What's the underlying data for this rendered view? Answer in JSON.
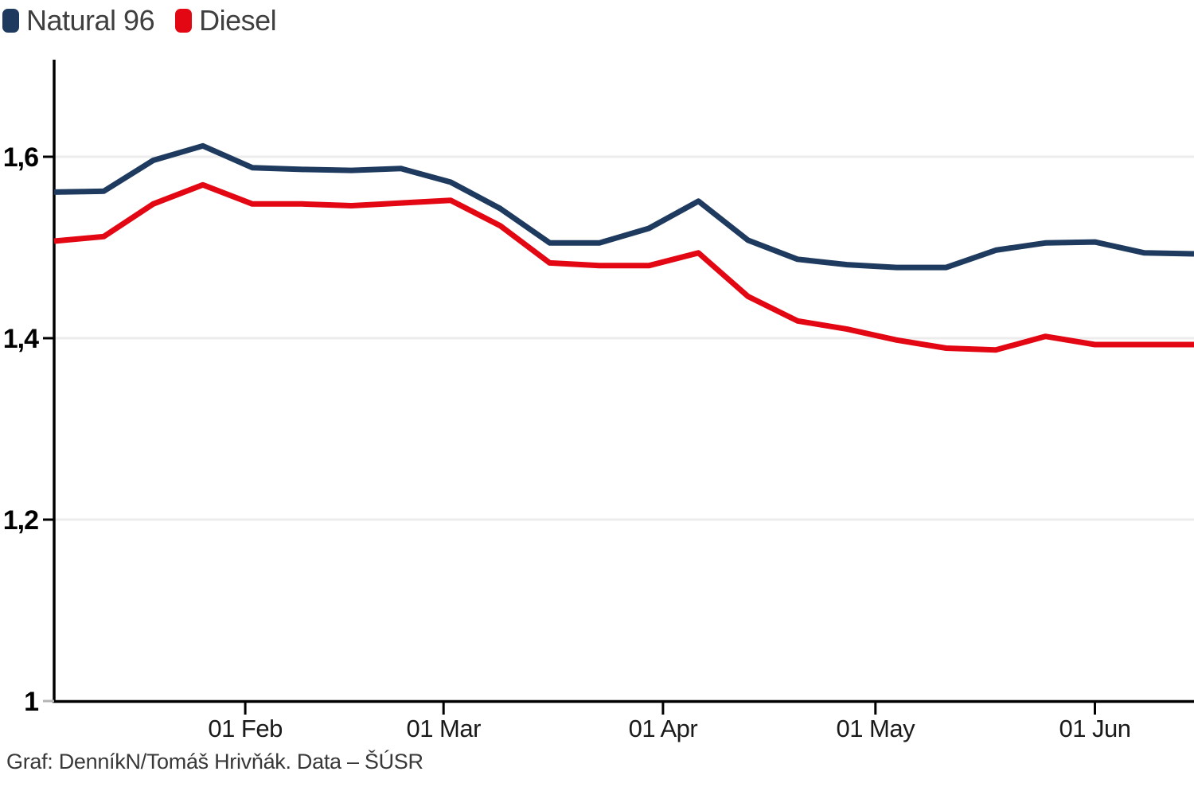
{
  "legend": {
    "items": [
      {
        "label": "Natural 96",
        "color": "#1e3a5f"
      },
      {
        "label": "Diesel",
        "color": "#e30613"
      }
    ]
  },
  "footer": {
    "credit": "Graf: DenníkN/Tomáš Hrivňák. Data – ŠÚSR"
  },
  "chart_data": {
    "type": "line",
    "title": "",
    "xlabel": "",
    "ylabel": "",
    "x_unit": "day_of_year_weekly",
    "x": [
      5,
      12,
      19,
      26,
      33,
      40,
      47,
      54,
      61,
      68,
      75,
      82,
      89,
      96,
      103,
      110,
      117,
      124,
      131,
      138,
      145,
      152,
      159,
      166
    ],
    "x_domain": [
      5,
      166
    ],
    "y_domain": [
      1.0,
      1.707
    ],
    "x_ticks": [
      {
        "day": 32,
        "label": "01 Feb"
      },
      {
        "day": 60,
        "label": "01 Mar"
      },
      {
        "day": 91,
        "label": "01 Apr"
      },
      {
        "day": 121,
        "label": "01 May"
      },
      {
        "day": 152,
        "label": "01 Jun"
      }
    ],
    "y_ticks": [
      {
        "value": 1.0,
        "label": "1"
      },
      {
        "value": 1.2,
        "label": "1,2"
      },
      {
        "value": 1.4,
        "label": "1,4"
      },
      {
        "value": 1.6,
        "label": "1,6"
      }
    ],
    "grid_values": [
      1.2,
      1.4,
      1.6
    ],
    "grid_on": true,
    "legend_position": "top-left",
    "axis_color": "#000000",
    "grid_color": "#ececec",
    "minor_tick_color": "#b5b5b5",
    "series": [
      {
        "name": "Natural 96",
        "color": "#1e3a5f",
        "values": [
          1.561,
          1.562,
          1.596,
          1.612,
          1.588,
          1.586,
          1.585,
          1.587,
          1.572,
          1.543,
          1.505,
          1.505,
          1.521,
          1.551,
          1.508,
          1.487,
          1.481,
          1.478,
          1.478,
          1.497,
          1.505,
          1.506,
          1.494,
          1.493
        ]
      },
      {
        "name": "Diesel",
        "color": "#e30613",
        "values": [
          1.507,
          1.512,
          1.548,
          1.569,
          1.548,
          1.548,
          1.546,
          1.549,
          1.552,
          1.524,
          1.483,
          1.48,
          1.48,
          1.494,
          1.446,
          1.419,
          1.41,
          1.398,
          1.389,
          1.387,
          1.402,
          1.393,
          1.393,
          1.393
        ]
      }
    ]
  }
}
